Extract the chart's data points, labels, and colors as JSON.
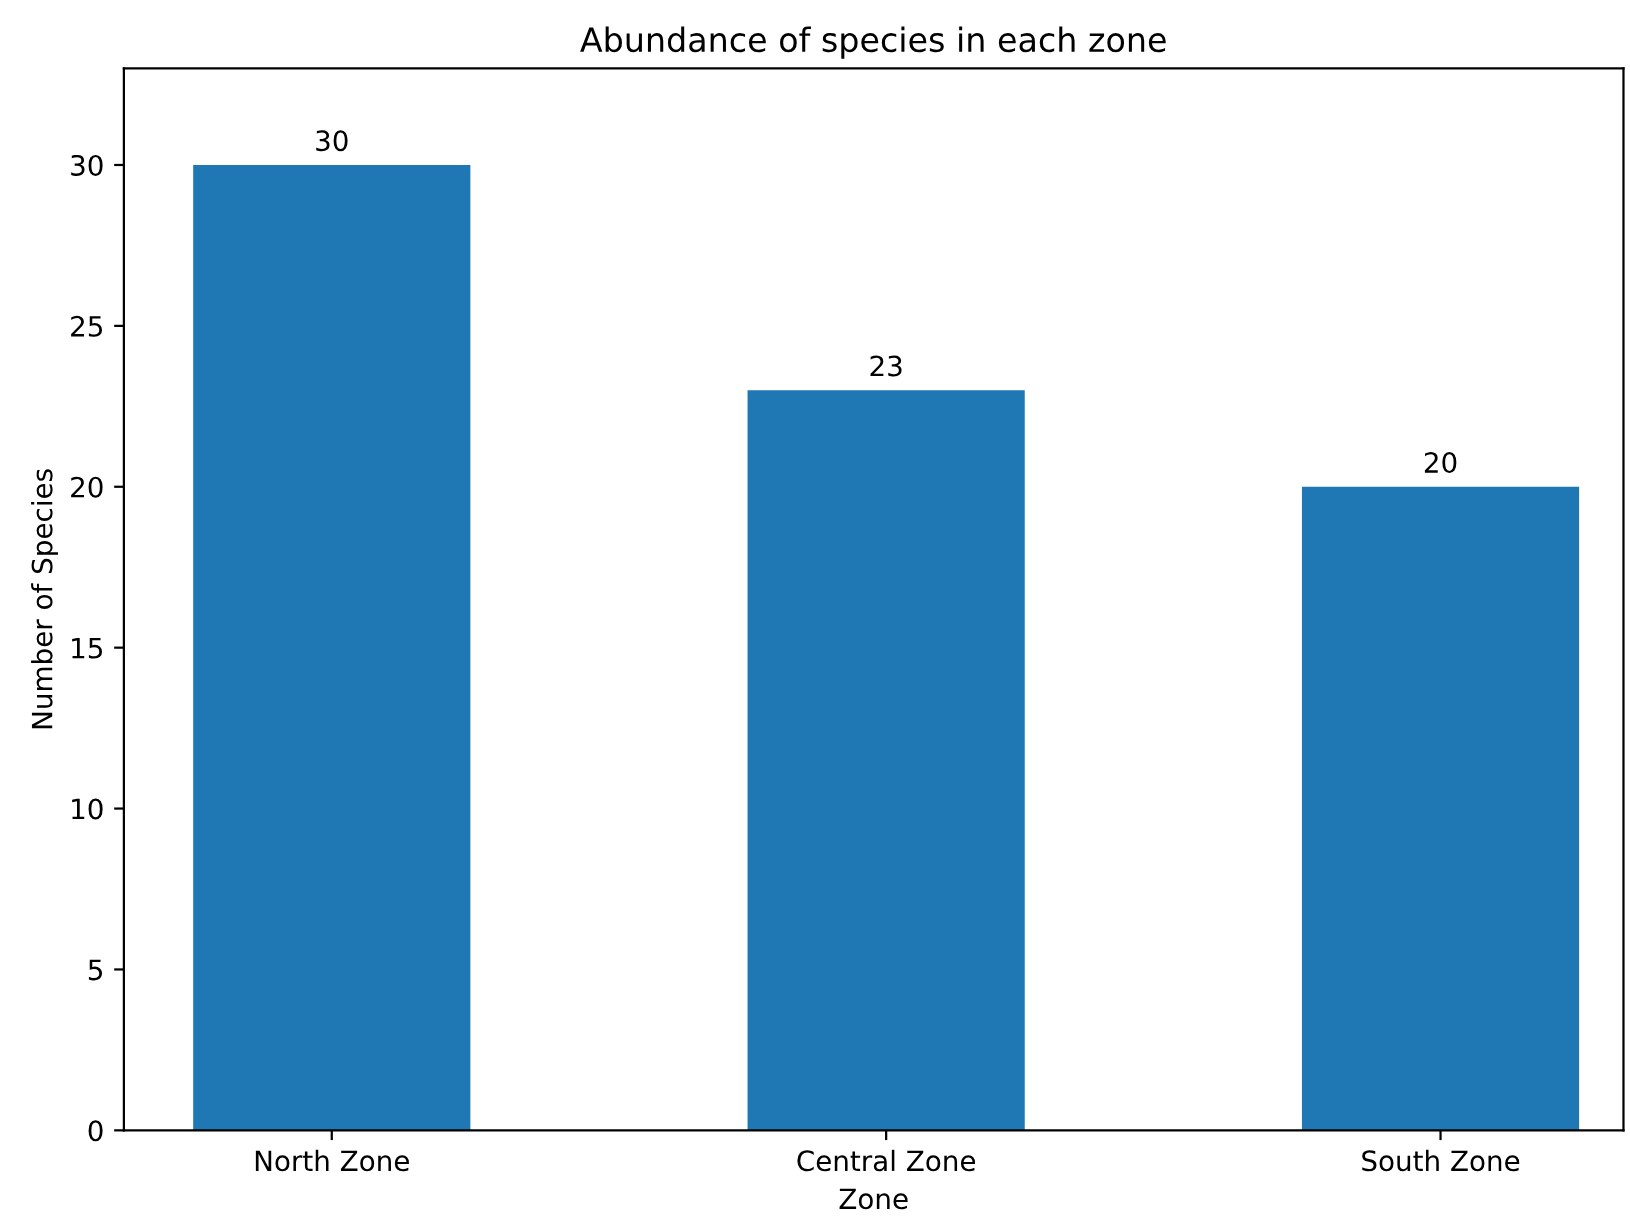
{
  "chart_data": {
    "type": "bar",
    "title": "Abundance of species in each zone",
    "xlabel": "Zone",
    "ylabel": "Number of Species",
    "categories": [
      "North Zone",
      "Central Zone",
      "South Zone"
    ],
    "values": [
      30,
      23,
      20
    ],
    "color": "#1f77b4",
    "data_labels": true,
    "ylim": [
      0,
      33
    ],
    "yticks": [
      0,
      5,
      10,
      15,
      20,
      25,
      30
    ],
    "grid": false,
    "legend": false
  }
}
